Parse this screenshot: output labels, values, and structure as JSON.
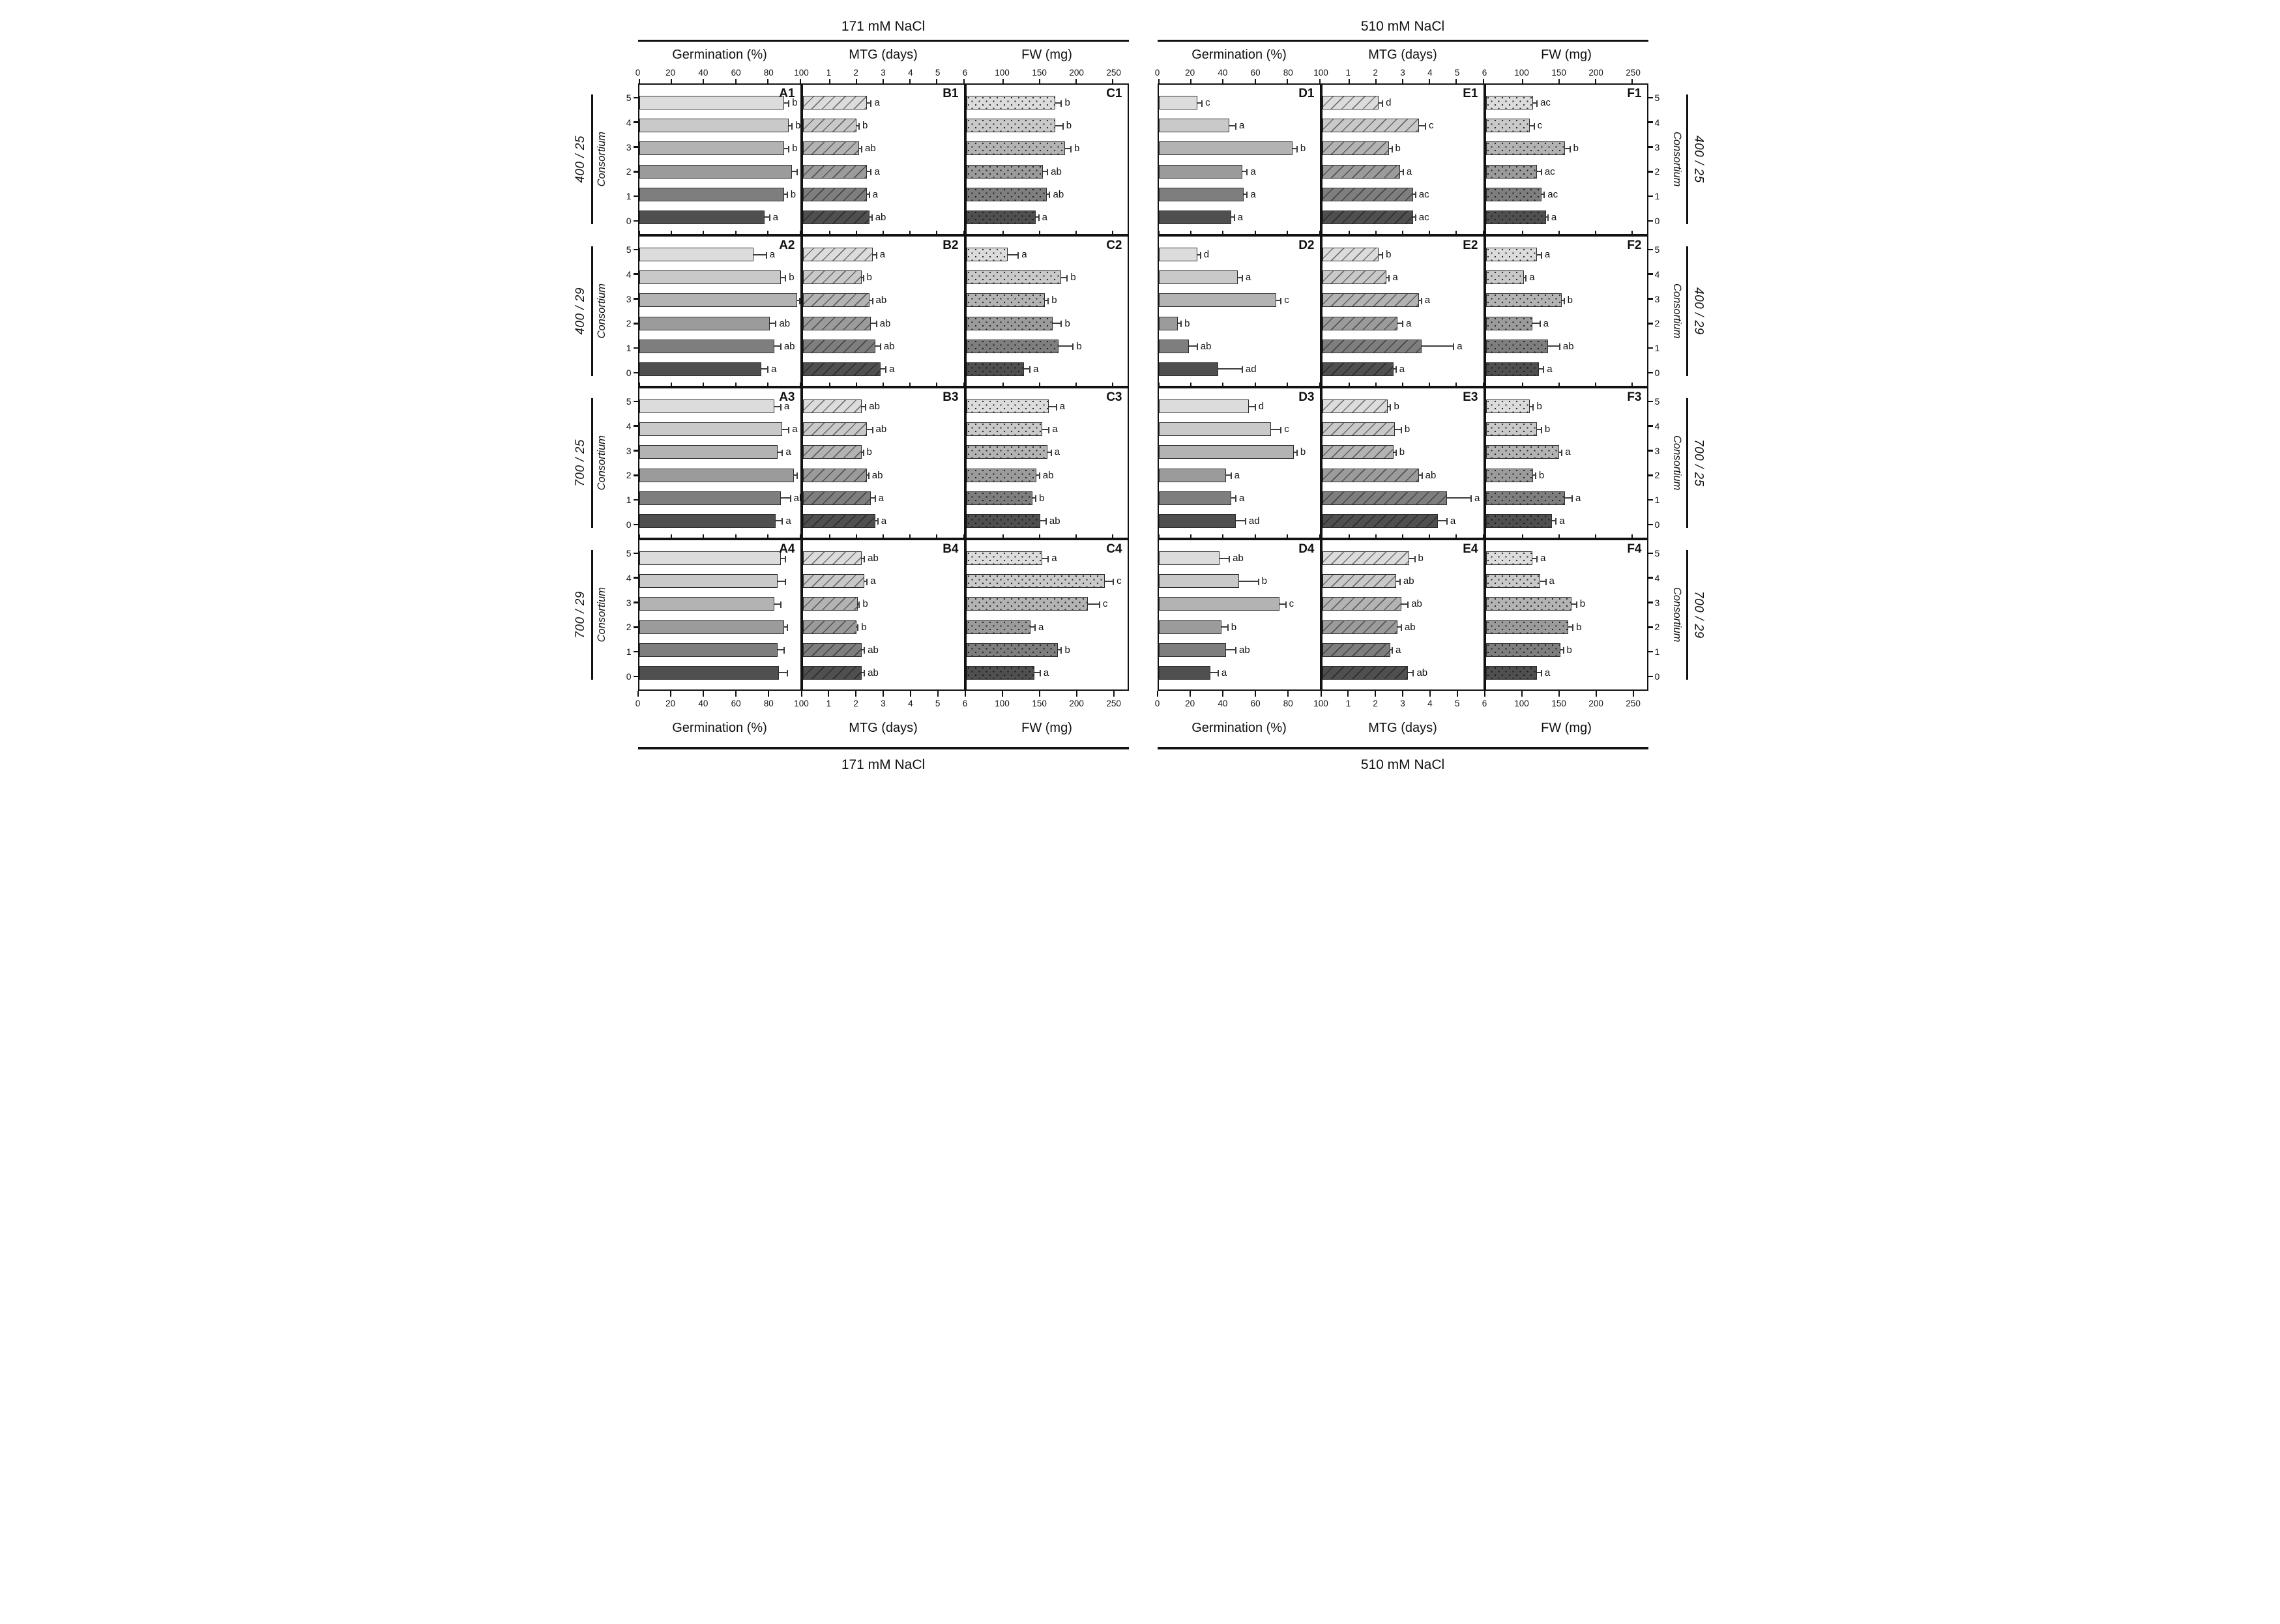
{
  "figure": {
    "condition_titles": [
      "171 mM NaCl",
      "510 mM NaCl"
    ],
    "measure_titles": [
      "Germination (%)",
      "MTG (days)",
      "FW (mg)"
    ],
    "y_axis_title": "Consortium",
    "row_groups": [
      "400 / 25",
      "400 / 29",
      "700 / 25",
      "700 / 29"
    ]
  },
  "chart_data": {
    "type": "bar",
    "orientation": "horizontal",
    "grid": "off",
    "categories": [
      5,
      4,
      3,
      2,
      1,
      0
    ],
    "category_axis_label": "Consortium",
    "conditions": [
      "171 mM NaCl",
      "510 mM NaCl"
    ],
    "treatments": [
      "400 / 25",
      "400 / 29",
      "700 / 25",
      "700 / 29"
    ],
    "bar_colors": [
      "#dcdcdc",
      "#c9c9c9",
      "#b3b3b3",
      "#9b9b9b",
      "#7e7e7e",
      "#4f4f4f"
    ],
    "patterns": {
      "germination": "solid",
      "mtg": "diagonal-hatch",
      "fw": "dots"
    },
    "axes": [
      {
        "key": "germination",
        "label": "Germination (%)",
        "min": 0,
        "max": 100,
        "ticks": [
          0,
          20,
          40,
          60,
          80,
          100
        ]
      },
      {
        "key": "mtg",
        "label": "MTG (days)",
        "min": 0,
        "max": 6,
        "ticks": [
          1,
          2,
          3,
          4,
          5,
          6
        ]
      },
      {
        "key": "fw",
        "label": "FW (mg)",
        "min": 50,
        "max": 270,
        "ticks": [
          100,
          150,
          200,
          250
        ]
      }
    ],
    "panels": [
      {
        "id": "A1",
        "condition": "171 mM NaCl",
        "measure": "germination",
        "treatment": "400 / 25",
        "values": [
          90,
          93,
          90,
          95,
          90,
          78
        ],
        "errors": [
          3,
          2,
          3,
          3,
          2,
          3
        ],
        "letters": [
          "b",
          "b",
          "b",
          "b",
          "b",
          "a"
        ]
      },
      {
        "id": "B1",
        "condition": "171 mM NaCl",
        "measure": "mtg",
        "treatment": "400 / 25",
        "values": [
          2.4,
          2.0,
          2.1,
          2.4,
          2.4,
          2.5
        ],
        "errors": [
          0.15,
          0.1,
          0.1,
          0.15,
          0.08,
          0.08
        ],
        "letters": [
          "a",
          "b",
          "ab",
          "a",
          "a",
          "ab"
        ]
      },
      {
        "id": "C1",
        "condition": "171 mM NaCl",
        "measure": "fw",
        "treatment": "400 / 25",
        "values": [
          172,
          172,
          185,
          155,
          160,
          145
        ],
        "errors": [
          8,
          10,
          8,
          6,
          4,
          4
        ],
        "letters": [
          "b",
          "b",
          "b",
          "ab",
          "ab",
          "a"
        ]
      },
      {
        "id": "D1",
        "condition": "510 mM NaCl",
        "measure": "germination",
        "treatment": "400 / 25",
        "values": [
          24,
          44,
          83,
          52,
          53,
          45
        ],
        "errors": [
          3,
          4,
          3,
          3,
          2,
          2
        ],
        "letters": [
          "c",
          "a",
          "b",
          "a",
          "a",
          "a"
        ]
      },
      {
        "id": "E1",
        "condition": "510 mM NaCl",
        "measure": "mtg",
        "treatment": "400 / 25",
        "values": [
          2.1,
          3.6,
          2.5,
          2.9,
          3.4,
          3.4
        ],
        "errors": [
          0.15,
          0.25,
          0.1,
          0.12,
          0.08,
          0.08
        ],
        "letters": [
          "d",
          "c",
          "b",
          "a",
          "ac",
          "ac"
        ]
      },
      {
        "id": "F1",
        "condition": "510 mM NaCl",
        "measure": "fw",
        "treatment": "400 / 25",
        "values": [
          115,
          110,
          158,
          120,
          126,
          132
        ],
        "errors": [
          5,
          6,
          7,
          6,
          4,
          3
        ],
        "letters": [
          "ac",
          "c",
          "b",
          "ac",
          "ac",
          "a"
        ]
      },
      {
        "id": "A2",
        "condition": "171 mM NaCl",
        "measure": "germination",
        "treatment": "400 / 29",
        "values": [
          71,
          88,
          98,
          81,
          84,
          76
        ],
        "errors": [
          8,
          3,
          2,
          4,
          4,
          4
        ],
        "letters": [
          "a",
          "b",
          "c",
          "ab",
          "ab",
          "a"
        ]
      },
      {
        "id": "B2",
        "condition": "171 mM NaCl",
        "measure": "mtg",
        "treatment": "400 / 29",
        "values": [
          2.6,
          2.2,
          2.5,
          2.55,
          2.7,
          2.9
        ],
        "errors": [
          0.15,
          0.06,
          0.1,
          0.2,
          0.2,
          0.2
        ],
        "letters": [
          "a",
          "b",
          "ab",
          "ab",
          "ab",
          "a"
        ]
      },
      {
        "id": "C2",
        "condition": "171 mM NaCl",
        "measure": "fw",
        "treatment": "400 / 29",
        "values": [
          107,
          180,
          157,
          168,
          176,
          129
        ],
        "errors": [
          14,
          8,
          5,
          12,
          20,
          8
        ],
        "letters": [
          "a",
          "b",
          "b",
          "b",
          "b",
          "a"
        ]
      },
      {
        "id": "D2",
        "condition": "510 mM NaCl",
        "measure": "germination",
        "treatment": "400 / 29",
        "values": [
          24,
          49,
          73,
          12,
          19,
          37
        ],
        "errors": [
          2,
          3,
          3,
          2,
          5,
          15
        ],
        "letters": [
          "d",
          "a",
          "c",
          "b",
          "ab",
          "ad"
        ]
      },
      {
        "id": "E2",
        "condition": "510 mM NaCl",
        "measure": "mtg",
        "treatment": "400 / 29",
        "values": [
          2.1,
          2.4,
          3.6,
          2.8,
          3.7,
          2.65
        ],
        "errors": [
          0.15,
          0.1,
          0.1,
          0.2,
          1.2,
          0.1
        ],
        "letters": [
          "b",
          "a",
          "a",
          "a",
          "a",
          "a"
        ]
      },
      {
        "id": "F2",
        "condition": "510 mM NaCl",
        "measure": "fw",
        "treatment": "400 / 29",
        "values": [
          120,
          102,
          154,
          114,
          135,
          123
        ],
        "errors": [
          6,
          3,
          3,
          10,
          16,
          6
        ],
        "letters": [
          "a",
          "a",
          "b",
          "a",
          "ab",
          "a"
        ]
      },
      {
        "id": "A3",
        "condition": "171 mM NaCl",
        "measure": "germination",
        "treatment": "700 / 25",
        "values": [
          84,
          89,
          86,
          96,
          88,
          85
        ],
        "errors": [
          4,
          4,
          3,
          2,
          6,
          4
        ],
        "letters": [
          "a",
          "a",
          "a",
          "b",
          "ab",
          "a"
        ]
      },
      {
        "id": "B3",
        "condition": "171 mM NaCl",
        "measure": "mtg",
        "treatment": "700 / 25",
        "values": [
          2.2,
          2.4,
          2.2,
          2.4,
          2.55,
          2.7
        ],
        "errors": [
          0.15,
          0.2,
          0.06,
          0.06,
          0.15,
          0.1
        ],
        "letters": [
          "ab",
          "ab",
          "b",
          "ab",
          "a",
          "a"
        ]
      },
      {
        "id": "C3",
        "condition": "171 mM NaCl",
        "measure": "fw",
        "treatment": "700 / 25",
        "values": [
          163,
          154,
          161,
          146,
          140,
          151
        ],
        "errors": [
          10,
          9,
          5,
          4,
          5,
          8
        ],
        "letters": [
          "a",
          "a",
          "a",
          "ab",
          "b",
          "ab"
        ]
      },
      {
        "id": "D3",
        "condition": "510 mM NaCl",
        "measure": "germination",
        "treatment": "700 / 25",
        "values": [
          56,
          70,
          84,
          42,
          45,
          48
        ],
        "errors": [
          4,
          6,
          2,
          3,
          3,
          6
        ],
        "letters": [
          "d",
          "c",
          "b",
          "a",
          "a",
          "ad"
        ]
      },
      {
        "id": "E3",
        "condition": "510 mM NaCl",
        "measure": "mtg",
        "treatment": "700 / 25",
        "values": [
          2.45,
          2.7,
          2.65,
          3.6,
          4.65,
          4.3
        ],
        "errors": [
          0.1,
          0.25,
          0.1,
          0.12,
          0.9,
          0.35
        ],
        "letters": [
          "b",
          "b",
          "b",
          "ab",
          "a",
          "a"
        ]
      },
      {
        "id": "F3",
        "condition": "510 mM NaCl",
        "measure": "fw",
        "treatment": "700 / 25",
        "values": [
          110,
          120,
          150,
          115,
          158,
          140
        ],
        "errors": [
          5,
          6,
          4,
          3,
          10,
          6
        ],
        "letters": [
          "b",
          "b",
          "a",
          "b",
          "a",
          "a"
        ]
      },
      {
        "id": "A4",
        "condition": "171 mM NaCl",
        "measure": "germination",
        "treatment": "700 / 29",
        "values": [
          88,
          86,
          84,
          90,
          86,
          87
        ],
        "errors": [
          3,
          5,
          4,
          2,
          4,
          5
        ],
        "letters": [
          "",
          "",
          "",
          "",
          "",
          ""
        ]
      },
      {
        "id": "B4",
        "condition": "171 mM NaCl",
        "measure": "mtg",
        "treatment": "700 / 29",
        "values": [
          2.2,
          2.3,
          2.05,
          2.0,
          2.2,
          2.2
        ],
        "errors": [
          0.1,
          0.1,
          0.06,
          0.06,
          0.1,
          0.1
        ],
        "letters": [
          "ab",
          "a",
          "b",
          "b",
          "ab",
          "ab"
        ]
      },
      {
        "id": "C4",
        "condition": "171 mM NaCl",
        "measure": "fw",
        "treatment": "700 / 29",
        "values": [
          154,
          239,
          216,
          138,
          175,
          143
        ],
        "errors": [
          8,
          12,
          16,
          6,
          5,
          8
        ],
        "letters": [
          "a",
          "c",
          "c",
          "a",
          "b",
          "a"
        ]
      },
      {
        "id": "D4",
        "condition": "510 mM NaCl",
        "measure": "germination",
        "treatment": "700 / 29",
        "values": [
          38,
          50,
          75,
          39,
          42,
          32
        ],
        "errors": [
          6,
          12,
          4,
          4,
          6,
          5
        ],
        "letters": [
          "ab",
          "b",
          "c",
          "b",
          "ab",
          "a"
        ]
      },
      {
        "id": "E4",
        "condition": "510 mM NaCl",
        "measure": "mtg",
        "treatment": "700 / 29",
        "values": [
          3.25,
          2.75,
          2.95,
          2.8,
          2.55,
          3.2
        ],
        "errors": [
          0.2,
          0.15,
          0.25,
          0.15,
          0.06,
          0.2
        ],
        "letters": [
          "b",
          "ab",
          "ab",
          "ab",
          "a",
          "ab"
        ]
      },
      {
        "id": "F4",
        "condition": "510 mM NaCl",
        "measure": "fw",
        "treatment": "700 / 29",
        "values": [
          114,
          124,
          167,
          163,
          152,
          120
        ],
        "errors": [
          6,
          8,
          7,
          6,
          4,
          6
        ],
        "letters": [
          "a",
          "a",
          "b",
          "b",
          "b",
          "a"
        ]
      }
    ]
  }
}
